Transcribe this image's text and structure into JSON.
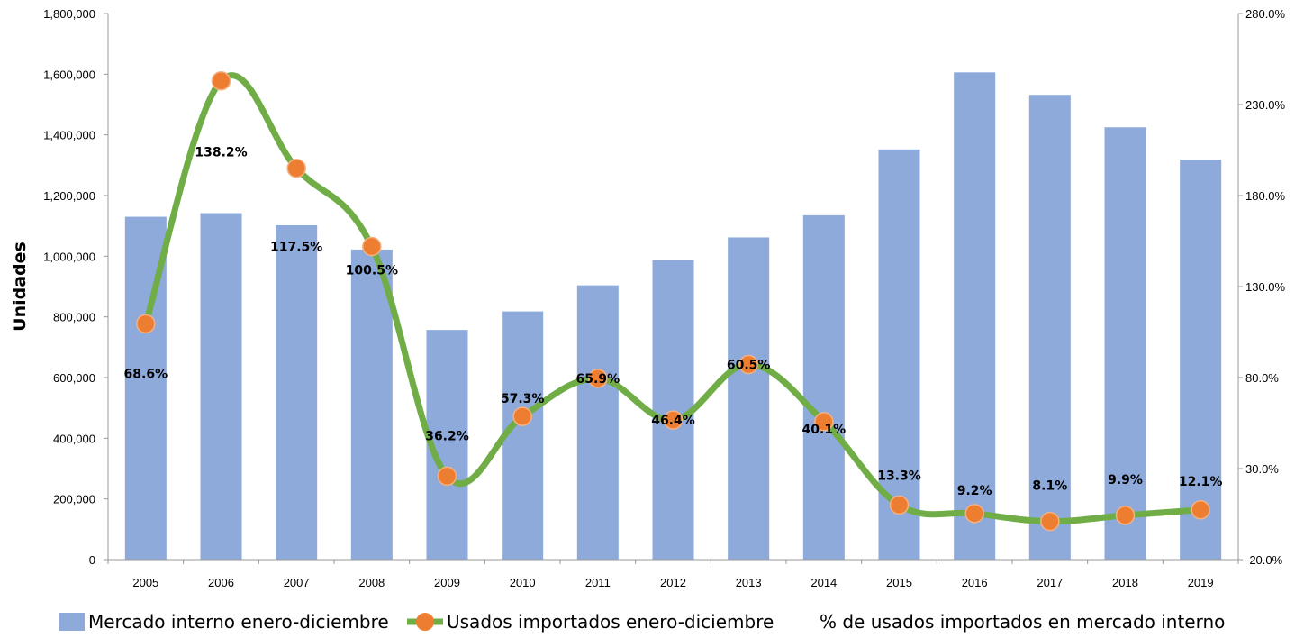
{
  "chart_data": {
    "type": "bar",
    "categories": [
      "2005",
      "2006",
      "2007",
      "2008",
      "2009",
      "2010",
      "2011",
      "2012",
      "2013",
      "2014",
      "2015",
      "2016",
      "2017",
      "2018",
      "2019"
    ],
    "ylabel": "Unidades",
    "ylim": [
      0,
      1800000
    ],
    "y_ticks": [
      "0",
      "200,000",
      "400,000",
      "600,000",
      "800,000",
      "1,000,000",
      "1,200,000",
      "1,400,000",
      "1,600,000",
      "1,800,000"
    ],
    "y2lim": [
      -20,
      280
    ],
    "y2_ticks": [
      "-20.0%",
      "30.0%",
      "80.0%",
      "130.0%",
      "180.0%",
      "230.0%",
      "280.0%"
    ],
    "grid": false,
    "legend_position": "bottom",
    "series": [
      {
        "name": "Mercado interno enero-diciembre",
        "type": "bar",
        "axis": "left",
        "color": "#8eaadb",
        "values": [
          1130000,
          1142000,
          1102000,
          1022000,
          757000,
          818000,
          904000,
          988000,
          1062000,
          1135000,
          1352000,
          1606000,
          1532000,
          1425000,
          1318000
        ]
      },
      {
        "name": "Usados importados enero-diciembre",
        "type": "line",
        "axis": "left",
        "line_color": "#70ad47",
        "marker_color": "#ed7d31",
        "values": [
          777000,
          1578000,
          1290000,
          1032000,
          275000,
          472000,
          597000,
          460000,
          643000,
          455000,
          180000,
          152000,
          126000,
          146000,
          164000
        ]
      },
      {
        "name": "% de usados importados en mercado interno",
        "type": "labels",
        "axis": "right",
        "values": [
          68.6,
          138.2,
          117.5,
          100.5,
          36.2,
          57.3,
          65.9,
          46.4,
          60.5,
          40.1,
          13.3,
          9.2,
          8.1,
          9.9,
          12.1
        ],
        "labels": [
          "68.6%",
          "138.2%",
          "117.5%",
          "100.5%",
          "36.2%",
          "57.3%",
          "65.9%",
          "46.4%",
          "60.5%",
          "40.1%",
          "13.3%",
          "9.2%",
          "8.1%",
          "9.9%",
          "12.1%"
        ]
      }
    ]
  }
}
